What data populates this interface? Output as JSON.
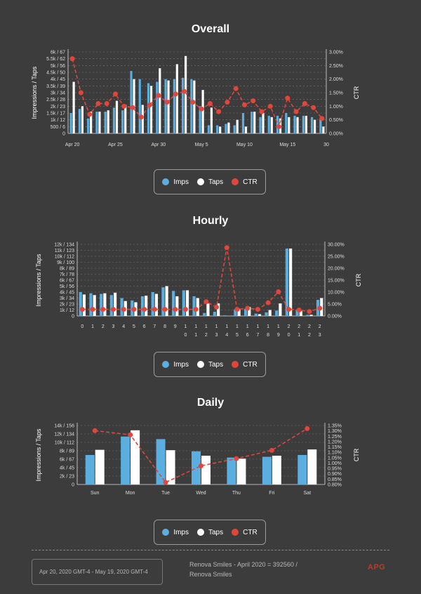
{
  "colors": {
    "imps": "#5aaee0",
    "taps": "#ffffff",
    "ctr": "#e0463a",
    "grid": "#777777",
    "axis": "#dddddd"
  },
  "legend": {
    "imps": "Imps",
    "taps": "Taps",
    "ctr": "CTR"
  },
  "footer": {
    "date_range": "Apr 20, 2020 GMT-4 - May 19, 2020 GMT-4",
    "account": "Renova Smiles - April 2020 = 392560 /",
    "account_line2": "Renova Smiles",
    "logo": "APG"
  },
  "chart_data": [
    {
      "id": "overall",
      "type": "bar",
      "title": "Overall",
      "ylabel": "Impressions / Taps",
      "y2label": "CTR",
      "y_ticks": [
        "0",
        "500 / 6",
        "1k / 12",
        "1.5k / 17",
        "2k / 23",
        "2.5k / 28",
        "3k / 34",
        "3.5k / 39",
        "4k / 45",
        "4.5k / 50",
        "5k / 56",
        "5.5k / 62",
        "6k / 67"
      ],
      "y2_ticks": [
        "0.00%",
        "0.50%",
        "1.00%",
        "1.50%",
        "2.00%",
        "2.50%",
        "3.00%"
      ],
      "ylim": [
        0,
        6000
      ],
      "y2lim": [
        0,
        3
      ],
      "x_tick_labels": [
        {
          "i": 0,
          "label": "Apr 20"
        },
        {
          "i": 5,
          "label": "Apr 25"
        },
        {
          "i": 10,
          "label": "Apr 30"
        },
        {
          "i": 15,
          "label": "May 5"
        },
        {
          "i": 20,
          "label": "May 10"
        },
        {
          "i": 25,
          "label": "May 15"
        },
        {
          "i": 30,
          "label": "30"
        }
      ],
      "imps": [
        1500,
        1800,
        1100,
        1600,
        1600,
        1900,
        1700,
        4600,
        4000,
        3700,
        3800,
        4000,
        4000,
        4100,
        4000,
        2000,
        600,
        600,
        700,
        600,
        1500,
        1600,
        1200,
        1300,
        1300,
        1500,
        1300,
        1300,
        1200,
        1100
      ],
      "taps": [
        3800,
        2000,
        1600,
        1600,
        1700,
        2400,
        2100,
        4000,
        2100,
        3500,
        4800,
        3900,
        5100,
        5700,
        3900,
        3200,
        1900,
        500,
        800,
        1000,
        500,
        1600,
        1500,
        1200,
        1100,
        1200,
        1200,
        1300,
        1000,
        500
      ],
      "ctr": [
        2.75,
        1.5,
        0.7,
        1.1,
        1.1,
        1.45,
        1.0,
        0.95,
        0.6,
        1.05,
        1.4,
        1.15,
        1.45,
        1.55,
        1.15,
        0.9,
        1.1,
        0.8,
        1.15,
        1.65,
        1.05,
        1.2,
        0.8,
        1.0,
        0.25,
        1.3,
        0.8,
        1.1,
        0.95,
        0.55
      ]
    },
    {
      "id": "hourly",
      "type": "bar",
      "title": "Hourly",
      "ylabel": "Impressions / Taps",
      "y2label": "CTR",
      "y_ticks": [
        "0",
        "1k / 12",
        "2k / 23",
        "3k / 34",
        "4k / 45",
        "5k / 56",
        "6k / 67",
        "7k / 78",
        "8k / 89",
        "9k / 100",
        "10k / 112",
        "11k / 123",
        "12k / 134"
      ],
      "y2_ticks": [
        "0.00%",
        "5.00%",
        "10.00%",
        "15.00%",
        "20.00%",
        "25.00%",
        "30.00%"
      ],
      "ylim": [
        0,
        12000
      ],
      "y2lim": [
        -2.5,
        30
      ],
      "categories": [
        "0",
        "1",
        "2",
        "3",
        "4",
        "5",
        "6",
        "7",
        "8",
        "9",
        "10",
        "11",
        "12",
        "13",
        "14",
        "15",
        "16",
        "17",
        "18",
        "19",
        "20",
        "21",
        "22",
        "23"
      ],
      "imps": [
        4000,
        3800,
        3700,
        3500,
        3000,
        2600,
        3300,
        4000,
        4800,
        4200,
        4300,
        3300,
        500,
        700,
        100,
        1100,
        1200,
        400,
        600,
        900,
        11300,
        1000,
        200,
        2700
      ],
      "taps": [
        3600,
        3500,
        3800,
        3900,
        2500,
        2300,
        3400,
        3700,
        5000,
        3300,
        4300,
        3000,
        2100,
        2100,
        0,
        1200,
        1500,
        300,
        1000,
        2100,
        11300,
        800,
        200,
        3000
      ],
      "ctr": [
        0.5,
        0.5,
        0.5,
        0.5,
        0.5,
        0.5,
        0.5,
        0.5,
        0.5,
        0.5,
        0.5,
        0.5,
        4.0,
        1.5,
        28.5,
        0.5,
        1.0,
        0.5,
        3.5,
        8.5,
        0.5,
        0.2,
        -0.5,
        1.0
      ]
    },
    {
      "id": "daily",
      "type": "bar",
      "title": "Daily",
      "ylabel": "Impressions / Taps",
      "y2label": "CTR",
      "y_ticks": [
        "0",
        "2k / 23",
        "4k / 45",
        "6k / 67",
        "8k / 89",
        "10k / 112",
        "12k / 134",
        "14k / 156"
      ],
      "y2_ticks": [
        "0.80%",
        "0.85%",
        "0.90%",
        "0.95%",
        "1.00%",
        "1.05%",
        "1.10%",
        "1.15%",
        "1.20%",
        "1.25%",
        "1.30%",
        "1.35%"
      ],
      "ylim": [
        0,
        16000
      ],
      "y2lim": [
        0.8,
        1.37
      ],
      "categories": [
        "Sun",
        "Mon",
        "Tue",
        "Wed",
        "Thu",
        "Fri",
        "Sat"
      ],
      "imps": [
        8000,
        13000,
        12300,
        9000,
        7300,
        7500,
        8000
      ],
      "taps": [
        9400,
        14700,
        9300,
        7800,
        7000,
        7800,
        9500
      ],
      "ctr": [
        1.32,
        1.28,
        0.82,
        0.98,
        1.05,
        1.13,
        1.34
      ]
    }
  ]
}
